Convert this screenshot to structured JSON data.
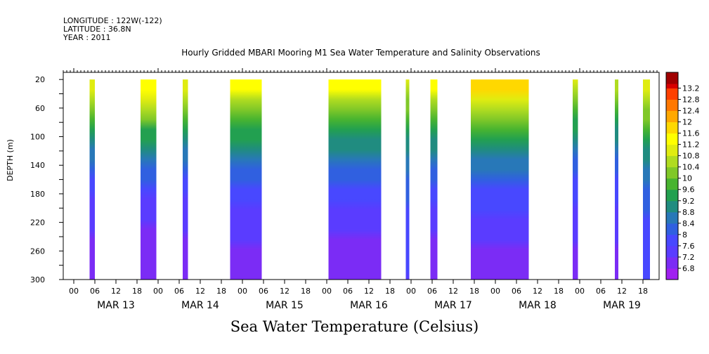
{
  "header": {
    "longitude": "LONGITUDE : 122W(-122)",
    "latitude": "LATITUDE : 36.8N",
    "year": "YEAR : 2011",
    "title": "Hourly Gridded MBARI Mooring M1 Sea Water Temperature and Salinity Observations"
  },
  "bottom_title": "Sea Water Temperature (Celsius)",
  "chart_data": {
    "type": "heatmap",
    "title": "Hourly Gridded MBARI Mooring M1 Sea Water Temperature and Salinity Observations",
    "xlabel": "",
    "ylabel": "DEPTH (m)",
    "y_ticks": [
      20,
      60,
      100,
      140,
      180,
      220,
      260,
      300
    ],
    "ylim": [
      300,
      10
    ],
    "x_hour_ticks": [
      "00",
      "06",
      "12",
      "18",
      "00",
      "06",
      "12",
      "18",
      "00",
      "06",
      "12",
      "18",
      "00",
      "06",
      "12",
      "18",
      "00",
      "06",
      "12",
      "18",
      "00",
      "06",
      "12",
      "18",
      "00",
      "06",
      "12",
      "18"
    ],
    "x_day_labels": [
      "MAR 13",
      "MAR 14",
      "MAR 15",
      "MAR 16",
      "MAR 17",
      "MAR 18",
      "MAR 19"
    ],
    "colorbar": {
      "levels": [
        6.8,
        7.2,
        7.6,
        8,
        8.4,
        8.8,
        9.2,
        9.6,
        10,
        10.4,
        10.8,
        11.2,
        11.6,
        12,
        12.4,
        12.8,
        13.2
      ],
      "units": "Celsius"
    },
    "data_segments": [
      {
        "start": "MAR 13 04:30",
        "end": "MAR 13 06:00",
        "surface_temp": 11.0,
        "bottom_temp": 7.0
      },
      {
        "start": "MAR 13 19:00",
        "end": "MAR 13 23:30",
        "surface_temp": 11.6,
        "bottom_temp": 6.9
      },
      {
        "start": "MAR 14 07:00",
        "end": "MAR 14 08:30",
        "surface_temp": 11.0,
        "bottom_temp": 7.0
      },
      {
        "start": "MAR 14 20:30",
        "end": "MAR 15 05:30",
        "surface_temp": 11.4,
        "bottom_temp": 7.1
      },
      {
        "start": "MAR 16 00:30",
        "end": "MAR 16 15:30",
        "surface_temp": 11.4,
        "bottom_temp": 7.0
      },
      {
        "start": "MAR 16 22:30",
        "end": "MAR 16 23:30",
        "surface_temp": 10.8,
        "bottom_temp": 7.6
      },
      {
        "start": "MAR 17 05:30",
        "end": "MAR 17 07:30",
        "surface_temp": 11.4,
        "bottom_temp": 7.0
      },
      {
        "start": "MAR 17 17:00",
        "end": "MAR 18 09:30",
        "surface_temp": 11.8,
        "bottom_temp": 7.1
      },
      {
        "start": "MAR 18 22:00",
        "end": "MAR 18 23:30",
        "surface_temp": 10.8,
        "bottom_temp": 7.1
      },
      {
        "start": "MAR 19 10:00",
        "end": "MAR 19 11:00",
        "surface_temp": 10.6,
        "bottom_temp": 7.1
      },
      {
        "start": "MAR 19 18:00",
        "end": "MAR 19 20:00",
        "surface_temp": 11.2,
        "bottom_temp": 7.7
      }
    ]
  }
}
